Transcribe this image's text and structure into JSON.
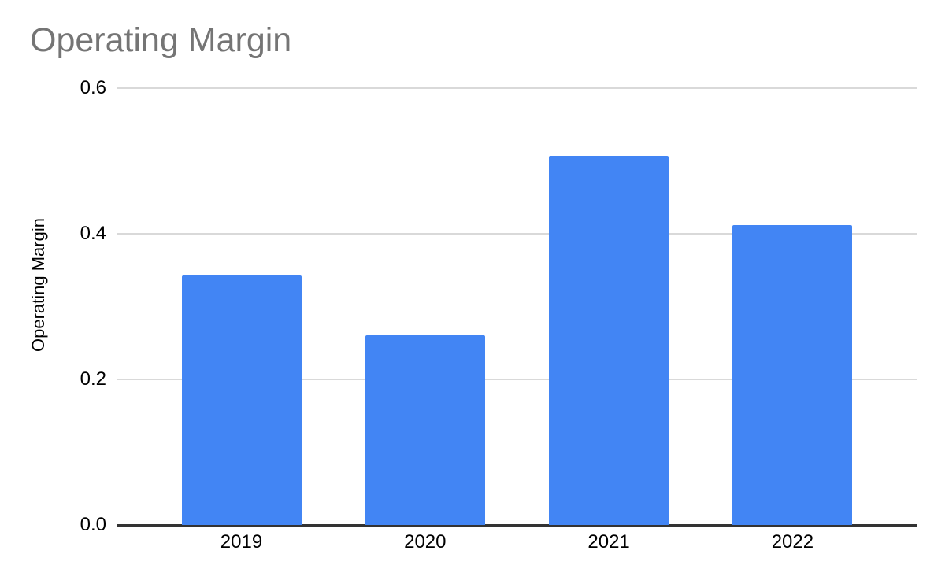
{
  "chart_data": {
    "type": "bar",
    "title": "Operating Margin",
    "xlabel": "",
    "ylabel": "Operating Margin",
    "categories": [
      "2019",
      "2020",
      "2021",
      "2022"
    ],
    "values": [
      0.343,
      0.261,
      0.507,
      0.412
    ],
    "series_name": "Operating Margin",
    "ylim": [
      0,
      0.6
    ],
    "yticks": [
      0,
      0.2,
      0.4,
      0.6
    ],
    "ytick_labels": [
      "0.0",
      "0.2",
      "0.4",
      "0.6"
    ],
    "grid": true,
    "legend_position": "none",
    "colors": {
      "bar": "#4285F4",
      "title_text": "#757575",
      "axis_text": "#000000",
      "gridline": "#D9D9D9",
      "axis_line": "#333333",
      "background": "#FFFFFF"
    }
  }
}
